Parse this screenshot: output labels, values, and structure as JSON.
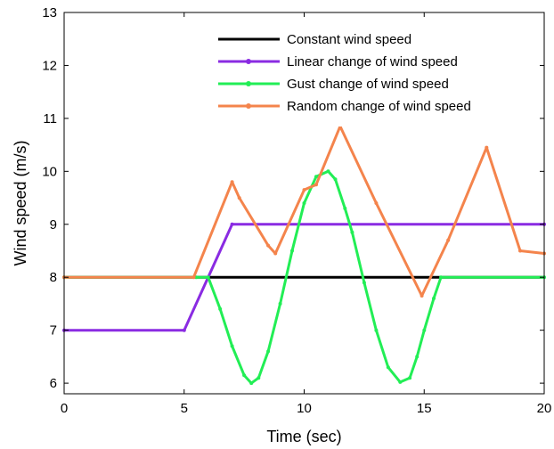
{
  "chart_data": {
    "type": "line",
    "title": "",
    "xlabel": "Time (sec)",
    "ylabel": "Wind speed (m/s)",
    "xlim": [
      0,
      20
    ],
    "ylim": [
      5.8,
      13
    ],
    "xticks": [
      "0",
      "5",
      "10",
      "15",
      "20"
    ],
    "yticks": [
      "6",
      "7",
      "8",
      "9",
      "10",
      "11",
      "12",
      "13"
    ],
    "grid": false,
    "legend_position": "top-right",
    "series": [
      {
        "name": "Constant wind speed",
        "color": "#000000",
        "marker": "none",
        "x": [
          0,
          20
        ],
        "y": [
          8,
          8
        ]
      },
      {
        "name": "Linear change of wind speed",
        "color": "#8a2be2",
        "marker": "dot",
        "x": [
          0,
          5,
          7,
          20
        ],
        "y": [
          7,
          7,
          9,
          9
        ]
      },
      {
        "name": "Gust change of wind speed",
        "color": "#22ee55",
        "marker": "dot",
        "x": [
          0,
          5.5,
          6.0,
          6.5,
          7.0,
          7.5,
          7.8,
          8.1,
          8.5,
          9.0,
          9.5,
          10.0,
          10.5,
          11.0,
          11.3,
          11.7,
          12.0,
          12.5,
          13.0,
          13.5,
          14.0,
          14.4,
          14.7,
          15.0,
          15.4,
          15.7,
          20
        ],
        "y": [
          8,
          8,
          8.0,
          7.4,
          6.7,
          6.15,
          6.0,
          6.1,
          6.6,
          7.5,
          8.5,
          9.4,
          9.9,
          10.0,
          9.85,
          9.3,
          8.85,
          7.9,
          7.0,
          6.3,
          6.02,
          6.1,
          6.5,
          7.0,
          7.6,
          8.0,
          8
        ]
      },
      {
        "name": "Random change of wind speed",
        "color": "#f4844c",
        "marker": "dot",
        "x": [
          0,
          5.4,
          7.0,
          7.3,
          8.5,
          8.8,
          10.0,
          10.5,
          11.5,
          13.0,
          14.9,
          16.0,
          17.6,
          19.0,
          20
        ],
        "y": [
          8,
          8,
          9.8,
          9.5,
          8.6,
          8.45,
          9.65,
          9.75,
          10.85,
          9.4,
          7.65,
          8.7,
          10.45,
          8.5,
          8.45
        ]
      }
    ]
  }
}
